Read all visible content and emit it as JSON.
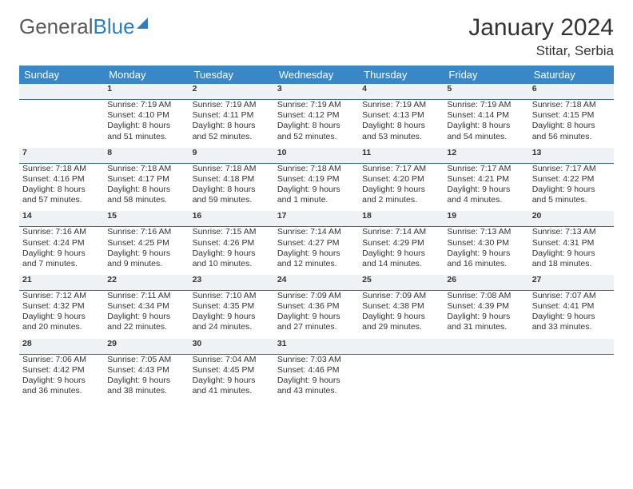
{
  "logo": {
    "text1": "General",
    "text2": "Blue"
  },
  "title": "January 2024",
  "subtitle": "Stitar, Serbia",
  "colors": {
    "header_bg": "#3a87c7",
    "header_fg": "#ffffff",
    "daynum_bg": "#eef2f5",
    "daynum_border": "#3a6e9a",
    "daynum_fg": "#5a6b78",
    "body_fg": "#333333",
    "logo_gray": "#5a5a5a",
    "logo_blue": "#2a7ec6"
  },
  "day_headers": [
    "Sunday",
    "Monday",
    "Tuesday",
    "Wednesday",
    "Thursday",
    "Friday",
    "Saturday"
  ],
  "weeks": [
    {
      "nums": [
        "",
        "1",
        "2",
        "3",
        "4",
        "5",
        "6"
      ],
      "cells": [
        null,
        {
          "sunrise": "Sunrise: 7:19 AM",
          "sunset": "Sunset: 4:10 PM",
          "day1": "Daylight: 8 hours",
          "day2": "and 51 minutes."
        },
        {
          "sunrise": "Sunrise: 7:19 AM",
          "sunset": "Sunset: 4:11 PM",
          "day1": "Daylight: 8 hours",
          "day2": "and 52 minutes."
        },
        {
          "sunrise": "Sunrise: 7:19 AM",
          "sunset": "Sunset: 4:12 PM",
          "day1": "Daylight: 8 hours",
          "day2": "and 52 minutes."
        },
        {
          "sunrise": "Sunrise: 7:19 AM",
          "sunset": "Sunset: 4:13 PM",
          "day1": "Daylight: 8 hours",
          "day2": "and 53 minutes."
        },
        {
          "sunrise": "Sunrise: 7:19 AM",
          "sunset": "Sunset: 4:14 PM",
          "day1": "Daylight: 8 hours",
          "day2": "and 54 minutes."
        },
        {
          "sunrise": "Sunrise: 7:18 AM",
          "sunset": "Sunset: 4:15 PM",
          "day1": "Daylight: 8 hours",
          "day2": "and 56 minutes."
        }
      ]
    },
    {
      "nums": [
        "7",
        "8",
        "9",
        "10",
        "11",
        "12",
        "13"
      ],
      "cells": [
        {
          "sunrise": "Sunrise: 7:18 AM",
          "sunset": "Sunset: 4:16 PM",
          "day1": "Daylight: 8 hours",
          "day2": "and 57 minutes."
        },
        {
          "sunrise": "Sunrise: 7:18 AM",
          "sunset": "Sunset: 4:17 PM",
          "day1": "Daylight: 8 hours",
          "day2": "and 58 minutes."
        },
        {
          "sunrise": "Sunrise: 7:18 AM",
          "sunset": "Sunset: 4:18 PM",
          "day1": "Daylight: 8 hours",
          "day2": "and 59 minutes."
        },
        {
          "sunrise": "Sunrise: 7:18 AM",
          "sunset": "Sunset: 4:19 PM",
          "day1": "Daylight: 9 hours",
          "day2": "and 1 minute."
        },
        {
          "sunrise": "Sunrise: 7:17 AM",
          "sunset": "Sunset: 4:20 PM",
          "day1": "Daylight: 9 hours",
          "day2": "and 2 minutes."
        },
        {
          "sunrise": "Sunrise: 7:17 AM",
          "sunset": "Sunset: 4:21 PM",
          "day1": "Daylight: 9 hours",
          "day2": "and 4 minutes."
        },
        {
          "sunrise": "Sunrise: 7:17 AM",
          "sunset": "Sunset: 4:22 PM",
          "day1": "Daylight: 9 hours",
          "day2": "and 5 minutes."
        }
      ]
    },
    {
      "nums": [
        "14",
        "15",
        "16",
        "17",
        "18",
        "19",
        "20"
      ],
      "cells": [
        {
          "sunrise": "Sunrise: 7:16 AM",
          "sunset": "Sunset: 4:24 PM",
          "day1": "Daylight: 9 hours",
          "day2": "and 7 minutes."
        },
        {
          "sunrise": "Sunrise: 7:16 AM",
          "sunset": "Sunset: 4:25 PM",
          "day1": "Daylight: 9 hours",
          "day2": "and 9 minutes."
        },
        {
          "sunrise": "Sunrise: 7:15 AM",
          "sunset": "Sunset: 4:26 PM",
          "day1": "Daylight: 9 hours",
          "day2": "and 10 minutes."
        },
        {
          "sunrise": "Sunrise: 7:14 AM",
          "sunset": "Sunset: 4:27 PM",
          "day1": "Daylight: 9 hours",
          "day2": "and 12 minutes."
        },
        {
          "sunrise": "Sunrise: 7:14 AM",
          "sunset": "Sunset: 4:29 PM",
          "day1": "Daylight: 9 hours",
          "day2": "and 14 minutes."
        },
        {
          "sunrise": "Sunrise: 7:13 AM",
          "sunset": "Sunset: 4:30 PM",
          "day1": "Daylight: 9 hours",
          "day2": "and 16 minutes."
        },
        {
          "sunrise": "Sunrise: 7:13 AM",
          "sunset": "Sunset: 4:31 PM",
          "day1": "Daylight: 9 hours",
          "day2": "and 18 minutes."
        }
      ]
    },
    {
      "nums": [
        "21",
        "22",
        "23",
        "24",
        "25",
        "26",
        "27"
      ],
      "cells": [
        {
          "sunrise": "Sunrise: 7:12 AM",
          "sunset": "Sunset: 4:32 PM",
          "day1": "Daylight: 9 hours",
          "day2": "and 20 minutes."
        },
        {
          "sunrise": "Sunrise: 7:11 AM",
          "sunset": "Sunset: 4:34 PM",
          "day1": "Daylight: 9 hours",
          "day2": "and 22 minutes."
        },
        {
          "sunrise": "Sunrise: 7:10 AM",
          "sunset": "Sunset: 4:35 PM",
          "day1": "Daylight: 9 hours",
          "day2": "and 24 minutes."
        },
        {
          "sunrise": "Sunrise: 7:09 AM",
          "sunset": "Sunset: 4:36 PM",
          "day1": "Daylight: 9 hours",
          "day2": "and 27 minutes."
        },
        {
          "sunrise": "Sunrise: 7:09 AM",
          "sunset": "Sunset: 4:38 PM",
          "day1": "Daylight: 9 hours",
          "day2": "and 29 minutes."
        },
        {
          "sunrise": "Sunrise: 7:08 AM",
          "sunset": "Sunset: 4:39 PM",
          "day1": "Daylight: 9 hours",
          "day2": "and 31 minutes."
        },
        {
          "sunrise": "Sunrise: 7:07 AM",
          "sunset": "Sunset: 4:41 PM",
          "day1": "Daylight: 9 hours",
          "day2": "and 33 minutes."
        }
      ]
    },
    {
      "nums": [
        "28",
        "29",
        "30",
        "31",
        "",
        "",
        ""
      ],
      "cells": [
        {
          "sunrise": "Sunrise: 7:06 AM",
          "sunset": "Sunset: 4:42 PM",
          "day1": "Daylight: 9 hours",
          "day2": "and 36 minutes."
        },
        {
          "sunrise": "Sunrise: 7:05 AM",
          "sunset": "Sunset: 4:43 PM",
          "day1": "Daylight: 9 hours",
          "day2": "and 38 minutes."
        },
        {
          "sunrise": "Sunrise: 7:04 AM",
          "sunset": "Sunset: 4:45 PM",
          "day1": "Daylight: 9 hours",
          "day2": "and 41 minutes."
        },
        {
          "sunrise": "Sunrise: 7:03 AM",
          "sunset": "Sunset: 4:46 PM",
          "day1": "Daylight: 9 hours",
          "day2": "and 43 minutes."
        },
        null,
        null,
        null
      ]
    }
  ]
}
